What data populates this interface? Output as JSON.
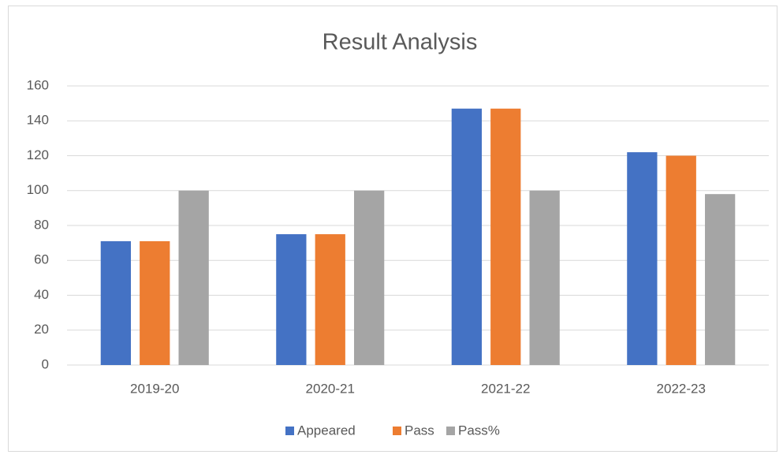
{
  "chart_data": {
    "type": "bar",
    "title": "Result Analysis",
    "categories": [
      "2019-20",
      "2020-21",
      "2021-22",
      "2022-23"
    ],
    "series": [
      {
        "name": "Appeared",
        "color": "#4472c4",
        "values": [
          71,
          75,
          147,
          122
        ]
      },
      {
        "name": "Pass",
        "color": "#ed7d31",
        "values": [
          71,
          75,
          147,
          120
        ]
      },
      {
        "name": "Pass%",
        "color": "#a5a5a5",
        "values": [
          100,
          100,
          100,
          98
        ]
      }
    ],
    "ylim": [
      0,
      160
    ],
    "yticks": [
      0,
      20,
      40,
      60,
      80,
      100,
      120,
      140,
      160
    ],
    "grid": true,
    "legend": "bottom"
  }
}
